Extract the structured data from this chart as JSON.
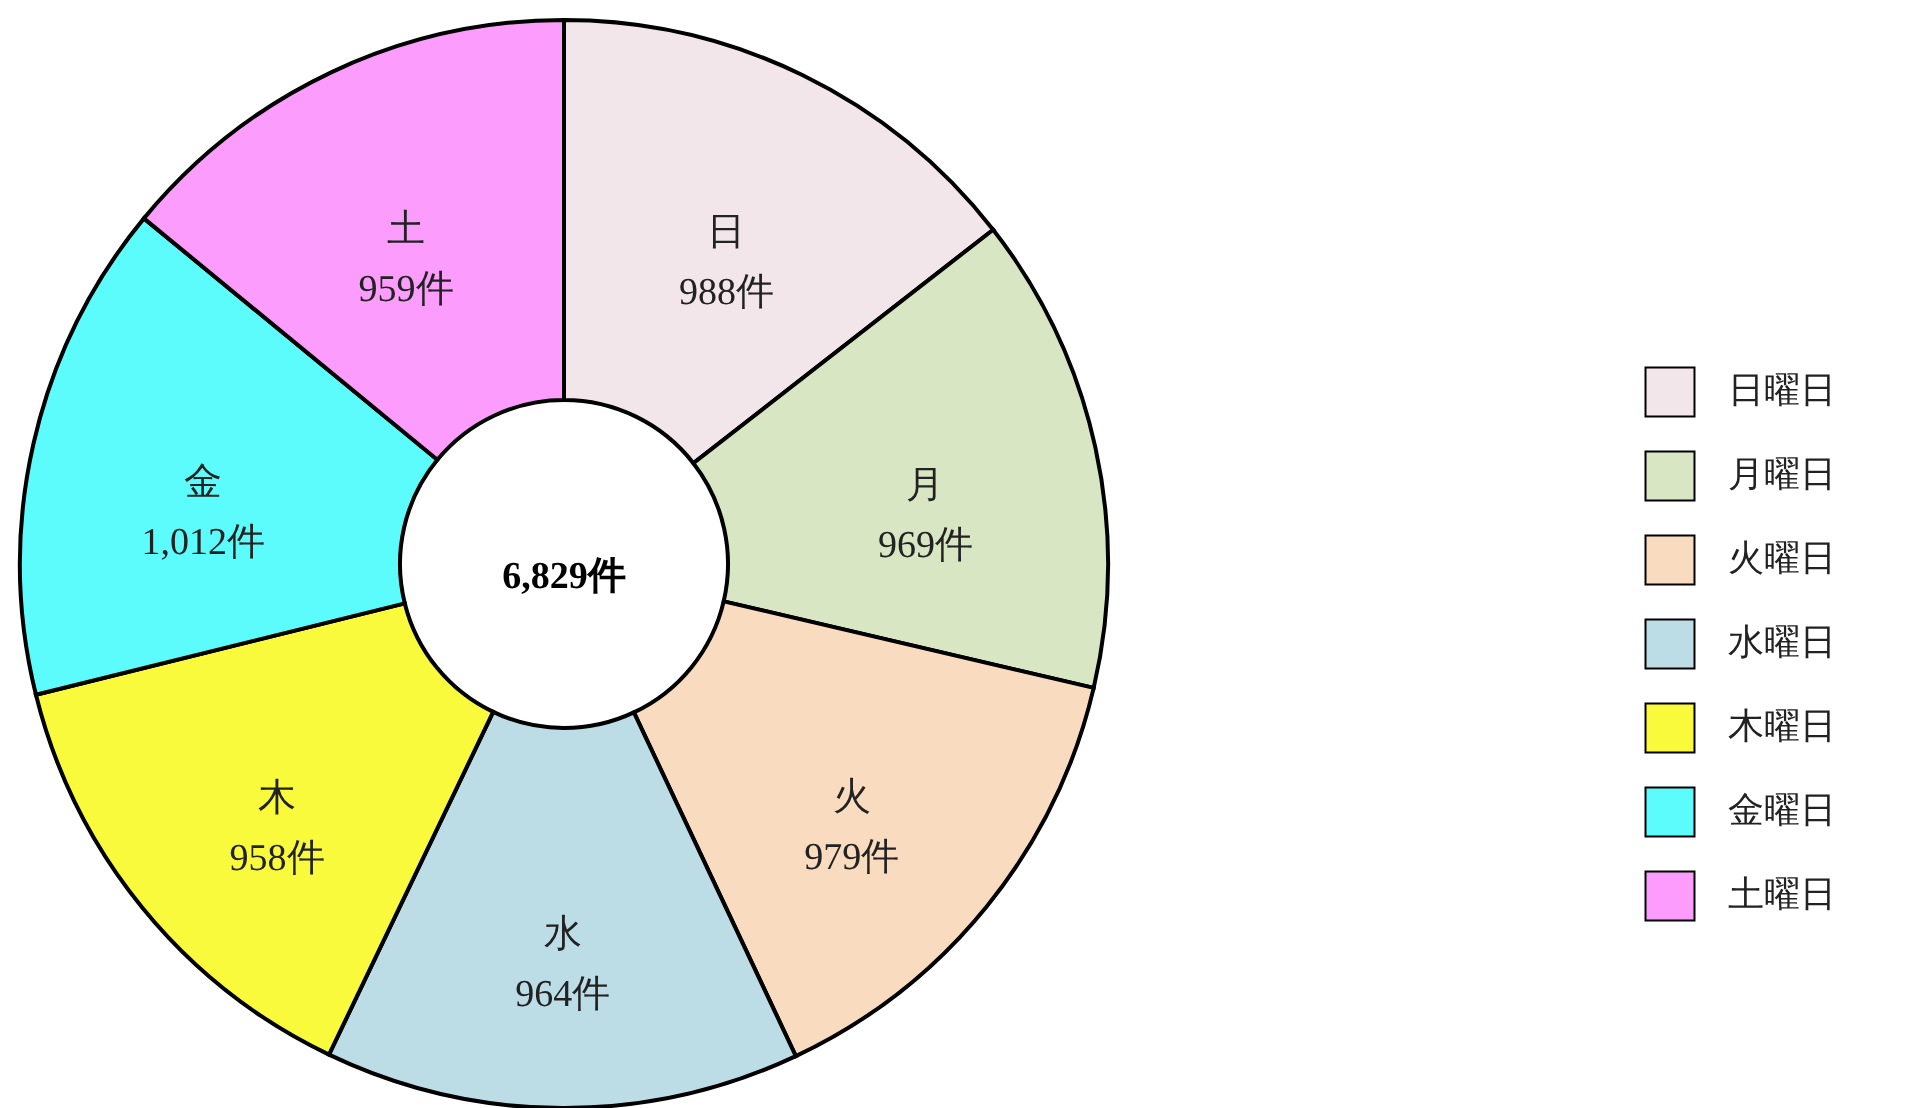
{
  "chart_data": {
    "type": "donut",
    "categories": [
      "日曜日",
      "月曜日",
      "火曜日",
      "水曜日",
      "木曜日",
      "金曜日",
      "土曜日"
    ],
    "values": [
      988,
      969,
      979,
      964,
      958,
      1012,
      959
    ],
    "colors": [
      "#f3e6ea",
      "#d9e6c4",
      "#f9dcc0",
      "#bcdde6",
      "#fafa3c",
      "#5cfcfc",
      "#fc9cfc"
    ],
    "value_labels": [
      "日\n988件",
      "月\n969件",
      "火\n979件",
      "水\n964件",
      "木\n958件",
      "金\n1,012件",
      "土\n959件"
    ],
    "annotations": [
      "6,829件"
    ],
    "legend": "right"
  }
}
